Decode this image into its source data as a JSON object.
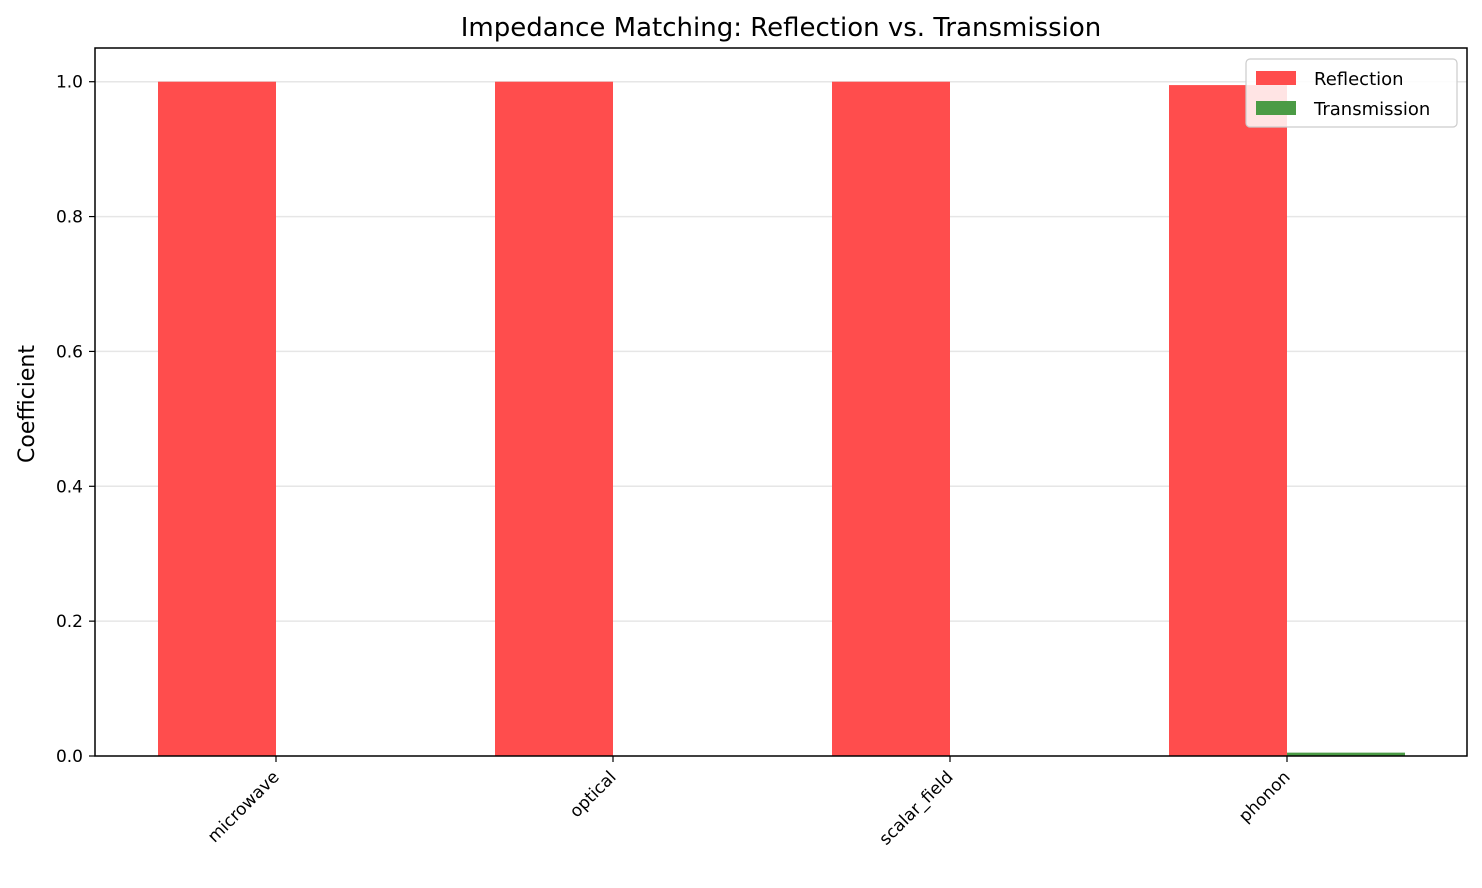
{
  "chart_data": {
    "type": "bar",
    "title": "Impedance Matching: Reflection vs. Transmission",
    "xlabel": "",
    "ylabel": "Coefficient",
    "categories": [
      "microwave",
      "optical",
      "scalar_field",
      "phonon"
    ],
    "series": [
      {
        "name": "Reflection",
        "values": [
          1.0,
          1.0,
          1.0,
          0.995
        ],
        "color": "#ff4d4d"
      },
      {
        "name": "Transmission",
        "values": [
          0.0,
          0.0,
          0.0,
          0.005
        ],
        "color": "#4b9b45"
      }
    ],
    "ylim": [
      0,
      1.05
    ],
    "yticks": [
      "0.0",
      "0.2",
      "0.4",
      "0.6",
      "0.8",
      "1.0"
    ],
    "grid": "y",
    "legend_position": "top-right"
  }
}
